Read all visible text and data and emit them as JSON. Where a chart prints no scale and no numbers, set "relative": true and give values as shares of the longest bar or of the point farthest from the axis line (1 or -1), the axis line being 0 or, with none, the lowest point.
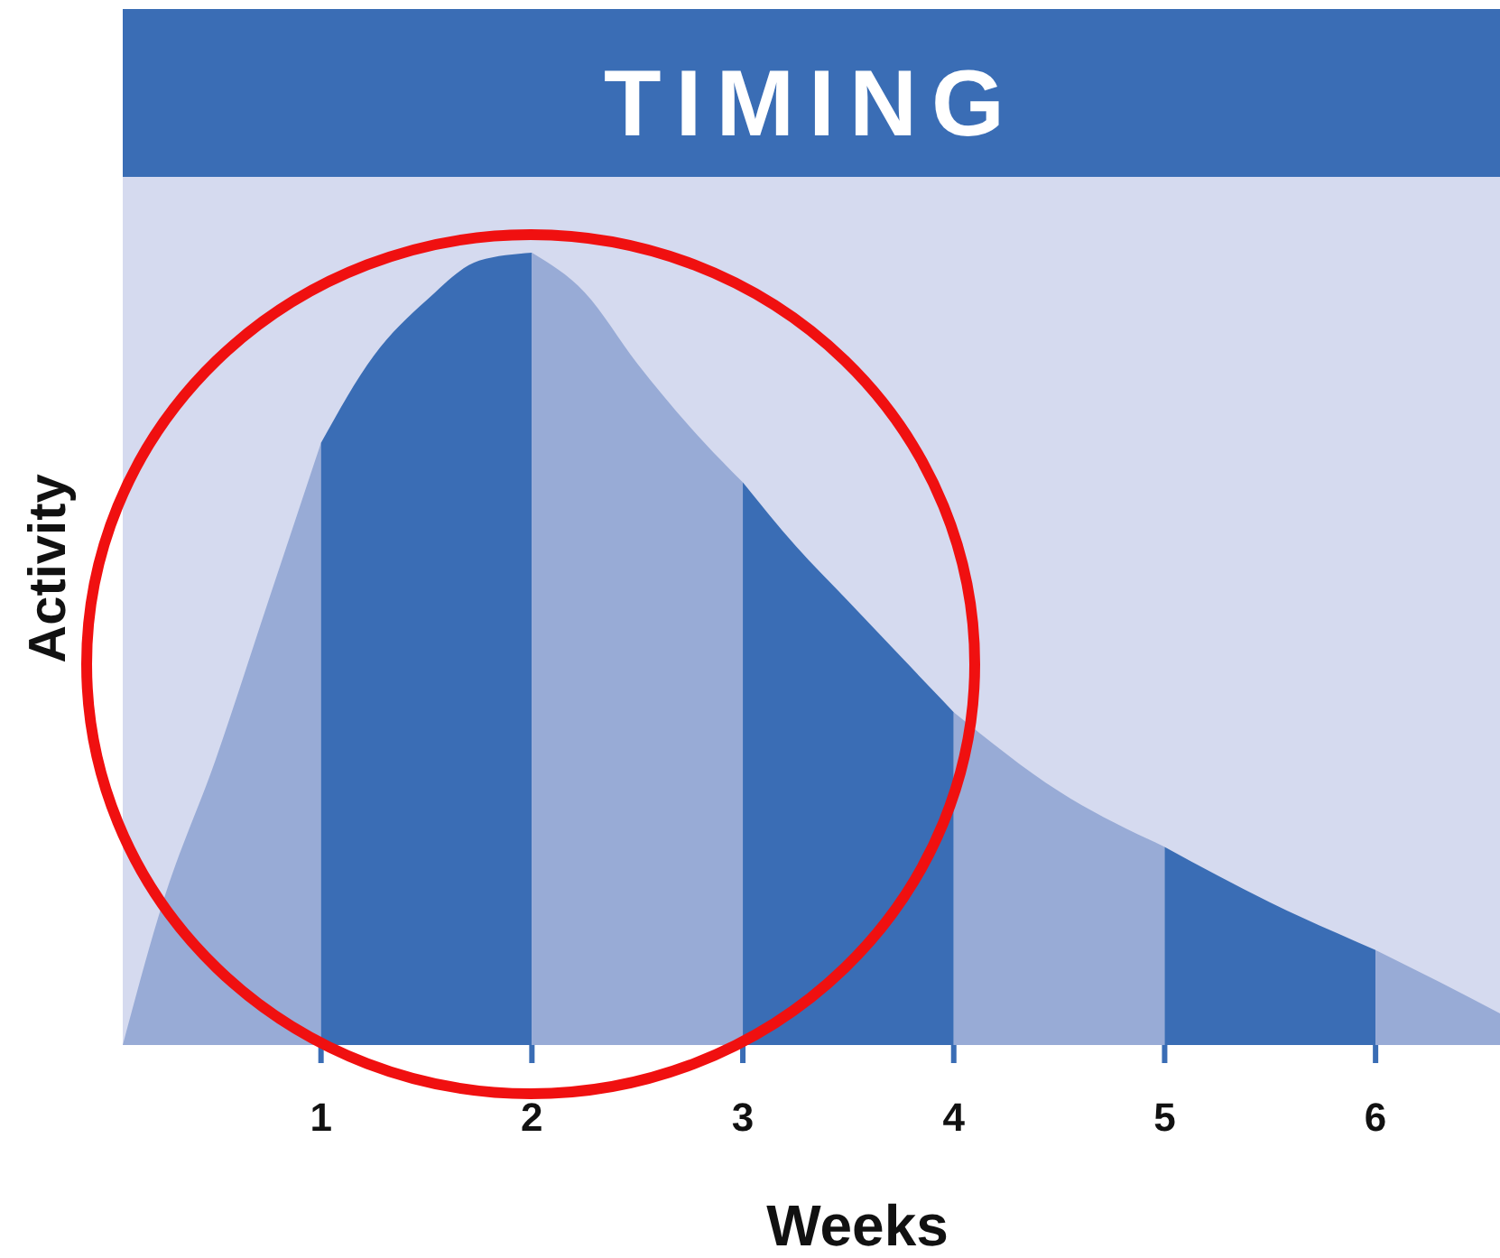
{
  "chart_data": {
    "type": "area",
    "title": "TIMING",
    "xlabel": "Weeks",
    "ylabel": "Activity",
    "relative": true,
    "xlim": [
      0.06,
      6.59
    ],
    "xticks": [
      1,
      2,
      3,
      4,
      5,
      6
    ],
    "series": [
      {
        "color": "#98abd6",
        "x": [
          0.06,
          0.25,
          0.5,
          0.75,
          1
        ],
        "values": [
          0,
          0.18,
          0.36,
          0.56,
          0.76
        ]
      },
      {
        "color": "#3a6db5",
        "x": [
          1,
          1.25,
          1.5,
          1.75,
          2
        ],
        "values": [
          0.76,
          0.87,
          0.94,
          0.99,
          1
        ]
      },
      {
        "color": "#98abd6",
        "x": [
          2,
          2.25,
          2.5,
          2.75,
          3
        ],
        "values": [
          1,
          0.95,
          0.86,
          0.78,
          0.71
        ]
      },
      {
        "color": "#3a6db5",
        "x": [
          3,
          3.25,
          3.5,
          3.75,
          4
        ],
        "values": [
          0.71,
          0.63,
          0.56,
          0.49,
          0.42
        ]
      },
      {
        "color": "#98abd6",
        "x": [
          4,
          4.5,
          5
        ],
        "values": [
          0.42,
          0.32,
          0.25
        ]
      },
      {
        "color": "#3a6db5",
        "x": [
          5,
          5.5,
          6
        ],
        "values": [
          0.25,
          0.18,
          0.12
        ]
      },
      {
        "color": "#98abd6",
        "x": [
          6,
          6.3,
          6.59
        ],
        "values": [
          0.12,
          0.08,
          0.04
        ]
      }
    ]
  }
}
